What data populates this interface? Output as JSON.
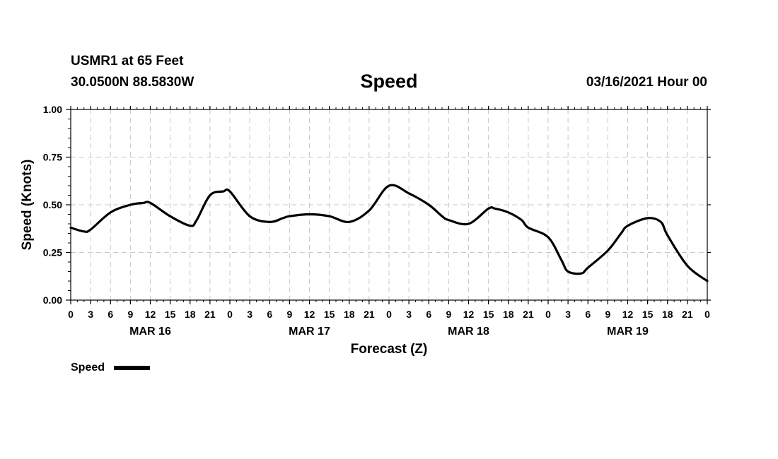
{
  "header": {
    "station": "USMR1 at 65 Feet",
    "coords": "30.0500N 88.5830W",
    "title": "Speed",
    "datetime": "03/16/2021 Hour 00"
  },
  "chart_data": {
    "type": "line",
    "title": "Speed",
    "xlabel": "Forecast (Z)",
    "ylabel": "Speed (Knots)",
    "ylim": [
      0,
      1
    ],
    "yticks": [
      "0.00",
      "0.25",
      "0.50",
      "0.75",
      "1.00"
    ],
    "xlim_hours": [
      0,
      96
    ],
    "hour_ticks": [
      "0",
      "3",
      "6",
      "9",
      "12",
      "15",
      "18",
      "21",
      "0",
      "3",
      "6",
      "9",
      "12",
      "15",
      "18",
      "21",
      "0",
      "3",
      "6",
      "9",
      "12",
      "15",
      "18",
      "21",
      "0",
      "3",
      "6",
      "9",
      "12",
      "15",
      "18",
      "21",
      "0"
    ],
    "day_labels": [
      "MAR 16",
      "MAR 17",
      "MAR 18",
      "MAR 19"
    ],
    "grid": true,
    "legend": {
      "label": "Speed",
      "placement": "bottom-left"
    },
    "series": [
      {
        "name": "Speed",
        "color": "#000000",
        "x_hours": [
          0,
          2,
          3,
          6,
          9,
          11,
          12,
          15,
          18,
          19,
          21,
          23,
          24,
          27,
          30,
          32,
          33,
          36,
          39,
          42,
          45,
          48,
          51,
          54,
          56,
          57,
          60,
          63,
          64,
          66,
          68,
          69,
          72,
          74,
          75,
          77,
          78,
          81,
          83,
          84,
          87,
          89,
          90,
          93,
          96
        ],
        "y": [
          0.38,
          0.36,
          0.37,
          0.46,
          0.5,
          0.51,
          0.51,
          0.44,
          0.39,
          0.42,
          0.55,
          0.57,
          0.57,
          0.44,
          0.41,
          0.43,
          0.44,
          0.45,
          0.44,
          0.41,
          0.47,
          0.6,
          0.56,
          0.5,
          0.44,
          0.42,
          0.4,
          0.48,
          0.48,
          0.46,
          0.42,
          0.38,
          0.33,
          0.21,
          0.15,
          0.14,
          0.17,
          0.26,
          0.35,
          0.39,
          0.43,
          0.41,
          0.34,
          0.18,
          0.1
        ]
      }
    ]
  }
}
